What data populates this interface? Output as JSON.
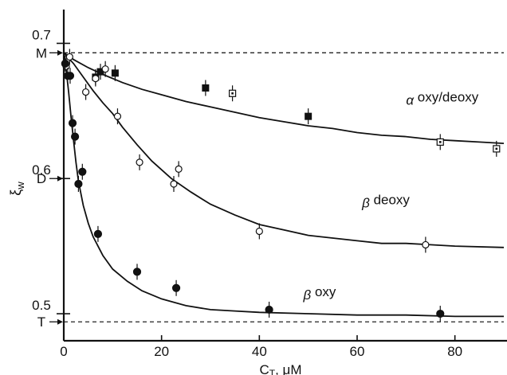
{
  "chart_data": {
    "type": "scatter",
    "xlabel": "C",
    "xlabel_sub": "T",
    "xlabel_unit": ", μM",
    "ylabel": "ξ",
    "ylabel_sub": "w",
    "xlim": [
      0,
      90
    ],
    "ylim": [
      0.48,
      0.725
    ],
    "x_ticks": [
      0,
      20,
      40,
      60,
      80
    ],
    "x_tick_labels": [
      "0",
      "20",
      "40",
      "60",
      "80"
    ],
    "y_ticks": [
      0.5,
      0.6,
      0.7
    ],
    "y_tick_labels": [
      "0.5",
      "0.6",
      "0.7"
    ],
    "reference_lines": [
      {
        "label": "M",
        "y": 0.693
      },
      {
        "label": "D",
        "y": 0.6
      },
      {
        "label": "T",
        "y": 0.494
      }
    ],
    "series": [
      {
        "name": "α oxy/deoxy",
        "label_prefix": "α",
        "label_text": "oxy/deoxy",
        "label_pos": [
          70,
          0.657
        ],
        "curve": [
          [
            0,
            0.693
          ],
          [
            2,
            0.688
          ],
          [
            5,
            0.682
          ],
          [
            8,
            0.677
          ],
          [
            12,
            0.671
          ],
          [
            16,
            0.666
          ],
          [
            20,
            0.662
          ],
          [
            25,
            0.657
          ],
          [
            30,
            0.653
          ],
          [
            35,
            0.649
          ],
          [
            40,
            0.645
          ],
          [
            45,
            0.642
          ],
          [
            50,
            0.639
          ],
          [
            55,
            0.637
          ],
          [
            60,
            0.634
          ],
          [
            65,
            0.632
          ],
          [
            70,
            0.631
          ],
          [
            75,
            0.629
          ],
          [
            80,
            0.628
          ],
          [
            85,
            0.627
          ],
          [
            90,
            0.626
          ]
        ],
        "points": [
          {
            "x": 6.5,
            "y": 0.675,
            "m": "filled-square"
          },
          {
            "x": 7.5,
            "y": 0.679,
            "m": "filled-square"
          },
          {
            "x": 10.5,
            "y": 0.678,
            "m": "filled-square"
          },
          {
            "x": 29,
            "y": 0.667,
            "m": "filled-square"
          },
          {
            "x": 50,
            "y": 0.646,
            "m": "filled-square"
          },
          {
            "x": 34.5,
            "y": 0.663,
            "m": "open-square"
          },
          {
            "x": 77,
            "y": 0.627,
            "m": "open-square"
          },
          {
            "x": 88.5,
            "y": 0.622,
            "m": "open-square"
          }
        ]
      },
      {
        "name": "β deoxy",
        "label_prefix": "β",
        "label_text": "deoxy",
        "label_pos": [
          61,
          0.581
        ],
        "curve": [
          [
            0,
            0.693
          ],
          [
            2,
            0.685
          ],
          [
            4,
            0.675
          ],
          [
            6,
            0.665
          ],
          [
            8,
            0.656
          ],
          [
            10,
            0.648
          ],
          [
            12,
            0.638
          ],
          [
            15,
            0.625
          ],
          [
            18,
            0.613
          ],
          [
            22,
            0.6
          ],
          [
            26,
            0.59
          ],
          [
            30,
            0.581
          ],
          [
            35,
            0.573
          ],
          [
            40,
            0.566
          ],
          [
            45,
            0.562
          ],
          [
            50,
            0.558
          ],
          [
            55,
            0.556
          ],
          [
            60,
            0.554
          ],
          [
            65,
            0.552
          ],
          [
            70,
            0.552
          ],
          [
            75,
            0.551
          ],
          [
            80,
            0.55
          ],
          [
            90,
            0.549
          ]
        ],
        "points": [
          {
            "x": 0.5,
            "y": 0.683,
            "m": "open-circle"
          },
          {
            "x": 1.2,
            "y": 0.69,
            "m": "open-circle"
          },
          {
            "x": 4.5,
            "y": 0.664,
            "m": "open-circle"
          },
          {
            "x": 6.5,
            "y": 0.674,
            "m": "open-circle"
          },
          {
            "x": 8.5,
            "y": 0.681,
            "m": "open-circle"
          },
          {
            "x": 11,
            "y": 0.646,
            "m": "open-circle"
          },
          {
            "x": 15.5,
            "y": 0.612,
            "m": "open-circle"
          },
          {
            "x": 22.5,
            "y": 0.596,
            "m": "open-circle"
          },
          {
            "x": 23.5,
            "y": 0.607,
            "m": "open-circle"
          },
          {
            "x": 40,
            "y": 0.561,
            "m": "open-circle"
          },
          {
            "x": 74,
            "y": 0.551,
            "m": "open-circle"
          }
        ]
      },
      {
        "name": "β oxy",
        "label_prefix": "β",
        "label_text": "oxy",
        "label_pos": [
          49,
          0.513
        ],
        "curve": [
          [
            0,
            0.693
          ],
          [
            0.5,
            0.68
          ],
          [
            1,
            0.664
          ],
          [
            1.5,
            0.645
          ],
          [
            2,
            0.628
          ],
          [
            2.5,
            0.612
          ],
          [
            3,
            0.598
          ],
          [
            4,
            0.58
          ],
          [
            5,
            0.567
          ],
          [
            6,
            0.557
          ],
          [
            8,
            0.543
          ],
          [
            10,
            0.533
          ],
          [
            13,
            0.524
          ],
          [
            16,
            0.517
          ],
          [
            20,
            0.511
          ],
          [
            25,
            0.506
          ],
          [
            30,
            0.503
          ],
          [
            35,
            0.502
          ],
          [
            40,
            0.501
          ],
          [
            50,
            0.5
          ],
          [
            60,
            0.499
          ],
          [
            70,
            0.499
          ],
          [
            80,
            0.498
          ],
          [
            90,
            0.498
          ]
        ],
        "points": [
          {
            "x": 0.3,
            "y": 0.685,
            "m": "filled-circle"
          },
          {
            "x": 0.8,
            "y": 0.676,
            "m": "filled-circle"
          },
          {
            "x": 1.3,
            "y": 0.676,
            "m": "filled-circle"
          },
          {
            "x": 1.8,
            "y": 0.641,
            "m": "filled-circle"
          },
          {
            "x": 2.3,
            "y": 0.631,
            "m": "filled-circle"
          },
          {
            "x": 3,
            "y": 0.596,
            "m": "filled-circle"
          },
          {
            "x": 3.8,
            "y": 0.605,
            "m": "filled-circle"
          },
          {
            "x": 7,
            "y": 0.559,
            "m": "filled-circle"
          },
          {
            "x": 15,
            "y": 0.531,
            "m": "filled-circle"
          },
          {
            "x": 23,
            "y": 0.519,
            "m": "filled-circle"
          },
          {
            "x": 42,
            "y": 0.503,
            "m": "filled-circle"
          },
          {
            "x": 77,
            "y": 0.5,
            "m": "filled-circle"
          }
        ]
      }
    ]
  }
}
